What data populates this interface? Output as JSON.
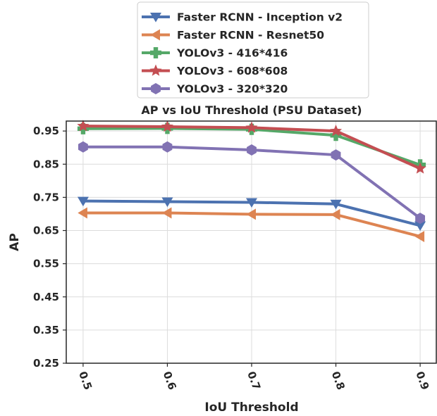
{
  "chart_data": {
    "type": "line",
    "title": "AP vs IoU Threshold (PSU Dataset)",
    "xlabel": "IoU Threshold",
    "ylabel": "AP",
    "x": [
      0.5,
      0.6,
      0.7,
      0.8,
      0.9
    ],
    "x_tick_labels": [
      "0.5",
      "0.6",
      "0.7",
      "0.8",
      "0.9"
    ],
    "y_ticks": [
      0.25,
      0.35,
      0.45,
      0.55,
      0.65,
      0.75,
      0.85,
      0.95
    ],
    "y_tick_labels": [
      "0.25",
      "0.35",
      "0.45",
      "0.55",
      "0.65",
      "0.75",
      "0.85",
      "0.95"
    ],
    "ylim": [
      0.25,
      0.98
    ],
    "xlim": [
      0.48,
      0.92
    ],
    "grid": true,
    "legend_position": "top-center",
    "series": [
      {
        "name": "Faster RCNN - Inception v2",
        "color": "#4c72b0",
        "marker": "triangle-down",
        "values": [
          0.739,
          0.737,
          0.735,
          0.73,
          0.665
        ]
      },
      {
        "name": "Faster RCNN - Resnet50",
        "color": "#dd8452",
        "marker": "triangle-left",
        "values": [
          0.703,
          0.703,
          0.699,
          0.698,
          0.632
        ]
      },
      {
        "name": "YOLOv3 - 416*416",
        "color": "#55a868",
        "marker": "plus",
        "values": [
          0.957,
          0.958,
          0.955,
          0.937,
          0.848
        ]
      },
      {
        "name": "YOLOv3 - 608*608",
        "color": "#c44e52",
        "marker": "star",
        "values": [
          0.965,
          0.963,
          0.96,
          0.95,
          0.837
        ]
      },
      {
        "name": "YOLOv3 - 320*320",
        "color": "#8172b3",
        "marker": "hexagon",
        "values": [
          0.902,
          0.902,
          0.893,
          0.878,
          0.687
        ]
      }
    ]
  }
}
